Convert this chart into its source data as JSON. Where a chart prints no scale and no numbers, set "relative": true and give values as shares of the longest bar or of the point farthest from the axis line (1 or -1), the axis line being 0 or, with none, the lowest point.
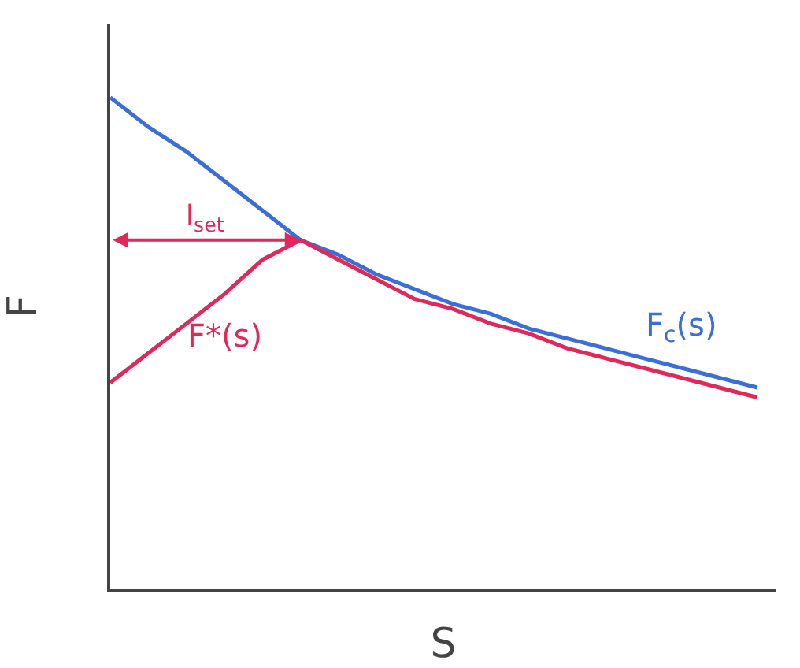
{
  "chart_data": {
    "type": "line",
    "relative": true,
    "xlabel": "S",
    "ylabel": "F",
    "categories": [
      null,
      null,
      null,
      null,
      null,
      null,
      null,
      null,
      null,
      null,
      null,
      null,
      null,
      null,
      null,
      null,
      null,
      null
    ],
    "series": [
      {
        "name": "F$_{c}$(s)",
        "color": "#3a6fd8",
        "values": [
          1,
          0.94,
          0.89,
          0.83,
          0.77,
          0.71,
          0.68,
          0.64,
          0.61,
          0.58,
          0.56,
          0.53,
          0.51,
          0.49,
          0.47,
          0.45,
          0.43,
          0.41
        ]
      },
      {
        "name": "F*(s)",
        "color": "#e0285a",
        "values": [
          0.42,
          0.48,
          0.54,
          0.6,
          0.67,
          0.71,
          0.67,
          0.63,
          0.59,
          0.57,
          0.54,
          0.52,
          0.49,
          0.47,
          0.45,
          0.43,
          0.41,
          0.39
        ]
      }
    ],
    "annotations": [
      "l$_{set}$"
    ],
    "legend": false,
    "marker": "none",
    "line_style": "solid"
  }
}
